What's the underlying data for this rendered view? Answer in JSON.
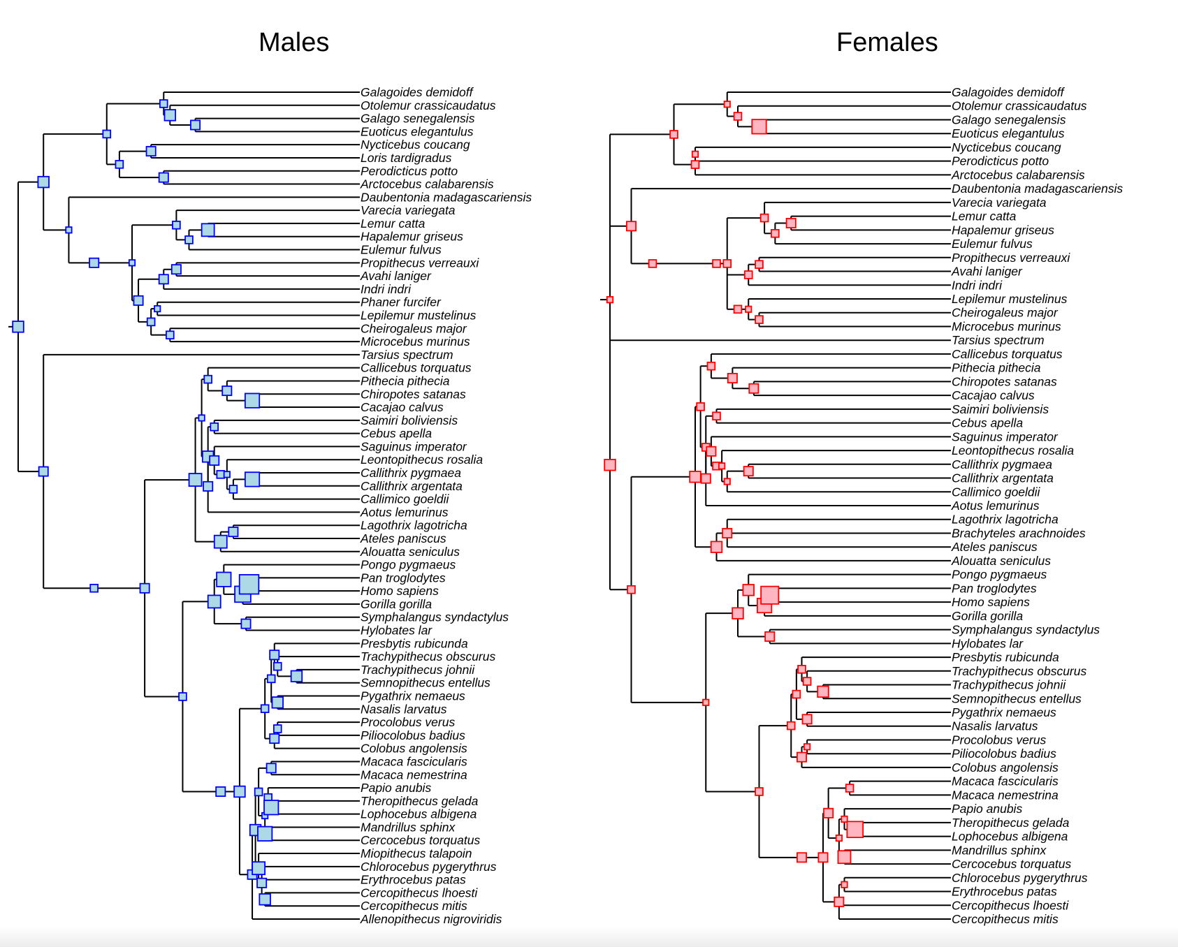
{
  "colors": {
    "males_fill": "#add8e6",
    "males_stroke": "#0000ff",
    "females_fill": "#ffb6c1",
    "females_stroke": "#ff0000",
    "branch": "#000000"
  },
  "panels": [
    {
      "id": "males",
      "title": "Males",
      "tips": [
        "Galagoides demidoff",
        "Otolemur crassicaudatus",
        "Galago senegalensis",
        "Euoticus elegantulus",
        "Nycticebus coucang",
        "Loris tardigradus",
        "Perodicticus potto",
        "Arctocebus calabarensis",
        "Daubentonia madagascariensis",
        "Varecia variegata",
        "Lemur catta",
        "Hapalemur griseus",
        "Eulemur fulvus",
        "Propithecus verreauxi",
        "Avahi laniger",
        "Indri indri",
        "Phaner furcifer",
        "Lepilemur mustelinus",
        "Cheirogaleus major",
        "Microcebus murinus",
        "Tarsius spectrum",
        "Callicebus torquatus",
        "Pithecia pithecia",
        "Chiropotes satanas",
        "Cacajao calvus",
        "Saimiri boliviensis",
        "Cebus apella",
        "Saguinus imperator",
        "Leontopithecus rosalia",
        "Callithrix pygmaea",
        "Callithrix argentata",
        "Callimico goeldii",
        "Aotus lemurinus",
        "Lagothrix lagotricha",
        "Ateles paniscus",
        "Alouatta seniculus",
        "Pongo pygmaeus",
        "Pan troglodytes",
        "Homo sapiens",
        "Gorilla gorilla",
        "Symphalangus syndactylus",
        "Hylobates lar",
        "Presbytis rubicunda",
        "Trachypithecus obscurus",
        "Trachypithecus johnii",
        "Semnopithecus entellus",
        "Pygathrix nemaeus",
        "Nasalis larvatus",
        "Procolobus verus",
        "Piliocolobus badius",
        "Colobus angolensis",
        "Macaca fascicularis",
        "Macaca nemestrina",
        "Papio anubis",
        "Theropithecus gelada",
        "Lophocebus albigena",
        "Mandrillus sphinx",
        "Cercocebus torquatus",
        "Miopithecus talapoin",
        "Chlorocebus pygerythrus",
        "Erythrocebus patas",
        "Cercopithecus lhoesti",
        "Cercopithecus mitis",
        "Allenopithecus nigroviridis"
      ],
      "tree": "((((Galagoides demidoff:4,(Otolemur crassicaudatus:3.5,(Galago senegalensis:1.5,Euoticus elegantulus:1.5)s3:2)s4:0.5)s2:4.5,((Nycticebus coucang:5,Loris tardigradus:5)s3:2.5,(Perodicticus potto:4,Arctocebus calabarensis:4)s3:3.5)s2:1)s2:5,(Daubentonia madagascariensis:11,(((Varecia variegata:4.5,((Lemur catta:2,Hapalemur griseus:2)s5:1.5,Eulemur fulvus:3.5)s2:1)s2:3.5,(((Propithecus verreauxi:3.5,Avahi laniger:3.5)s3:1,Indri indri:4.5)s3:2,((Phaner furcifer:5,Lepilemur mustelinus:5)s1:0.5,(Cheirogaleus major:4,Microcebus murinus:4)s2:1.5)s2:1)s3:0.5)s1:3)s3:2)s1:2)s4:2,(Tarsius spectrum:14,(((((Callicebus torquatus:4,(Pithecia pithecia:2.5,(Chiropotes satanas:0.5,Cacajao calvus:0.5)s6:2)s3:1.5)s2:0.5,((Saimiri boliviensis:3.5,Cebus apella:3.5)s2:0.5,((Saguinus imperator:3.5,((Leontopithecus rosalia:3,((Callithrix pygmaea:1,Callithrix argentata:1)s6:1.5,Callimico goeldii:2.5)s2:0.5)s1:0.5)s2:0.5)s3:0.5,Aotus lemurinus:4.5)s3:0)s4:0.5)s1:0.5,((Lagothrix lagotricha:1.5,Ateles paniscus:1.5)s3:1,Alouatta seniculus:3)s5:2)s5:4,(((Pongo pygmaeus:3,((Pan troglodytes:1,Homo sapiens:1)s9:0.5,Gorilla gorilla:1.5)s7:1.5)s6:0.75,(Symphalangus syndactylus:1.25,Hylobates lar:1.25)s3:2.5)s5:2.5,(((((Presbytis rubicunda:2.25,(Trachypithecus obscurus:2,(Trachypithecus johnii:0.5,Semnopithecus entellus:0.5)s4:1.5)s2:0.25)s3:0.25,(Pygathrix nemaeus:2,Nasalis larvatus:2)s4:0.5)s2:0.5,((Procolobus verus:2,Piliocolobus badius:2)s2:0.25,Colobus angolensis:2.25)s3:0.75)s2:2,((((Macaca fascicularis:1.25,Macaca nemestrina:1.25)s3:1,((Papio anubis:0.75,(Theropithecus gelada:0.5,Lophocebus albigena:0.5)s6:0.25)s2:0.25,(Mandrillus sphinx:1,Cercocebus torquatus:1)s6:0)s1:0.5)s2:0.25,(Miopithecus talapoin:1.5,(Chlorocebus pygerythrus:1.5,Erythrocebus patas:1.5,(Cercopithecus lhoesti:0.5,Cercopithecus mitis:0.5)s4:0.25)s3:0.25)s5:0.25)s4:0.25,Allenopithecus nigroviridis:2.75)s3:1)s4:1.5)s3:3)s2:3)s3:4)s2:4)s3:2)s4"
    },
    {
      "id": "females",
      "title": "Females",
      "tips": [
        "Galagoides demidoff",
        "Otolemur crassicaudatus",
        "Galago senegalensis",
        "Euoticus elegantulus",
        "Nycticebus coucang",
        "Perodicticus potto",
        "Arctocebus calabarensis",
        "Daubentonia madagascariensis",
        "Varecia variegata",
        "Lemur catta",
        "Hapalemur griseus",
        "Eulemur fulvus",
        "Propithecus verreauxi",
        "Avahi laniger",
        "Indri indri",
        "Lepilemur mustelinus",
        "Cheirogaleus major",
        "Microcebus murinus",
        "Tarsius spectrum",
        "Callicebus torquatus",
        "Pithecia pithecia",
        "Chiropotes satanas",
        "Cacajao calvus",
        "Saimiri boliviensis",
        "Cebus apella",
        "Saguinus imperator",
        "Leontopithecus rosalia",
        "Callithrix pygmaea",
        "Callithrix argentata",
        "Callimico goeldii",
        "Aotus lemurinus",
        "Lagothrix lagotricha",
        "Brachyteles arachnoides",
        "Ateles paniscus",
        "Alouatta seniculus",
        "Pongo pygmaeus",
        "Pan troglodytes",
        "Homo sapiens",
        "Gorilla gorilla",
        "Symphalangus syndactylus",
        "Hylobates lar",
        "Presbytis rubicunda",
        "Trachypithecus obscurus",
        "Trachypithecus johnii",
        "Semnopithecus entellus",
        "Pygathrix nemaeus",
        "Nasalis larvatus",
        "Procolobus verus",
        "Piliocolobus badius",
        "Colobus angolensis",
        "Macaca fascicularis",
        "Macaca nemestrina",
        "Papio anubis",
        "Theropithecus gelada",
        "Lophocebus albigena",
        "Mandrillus sphinx",
        "Cercocebus torquatus",
        "Chlorocebus pygerythrus",
        "Erythrocebus patas",
        "Cercopithecus lhoesti",
        "Cercopithecus mitis"
      ],
      "tree": "((((Galagoides demidoff:5,(Otolemur crassicaudatus:4,(Galago senegalensis:2,Euoticus elegantulus:2)s6:2)s2:1)s1:5,((Nycticebus coucang:8,Perodicticus potto:8)s1:0,Arctocebus calabarensis:5)s2:2)s2:6,(Daubentonia madagascariensis:13,((((Varecia variegata:5,((Lemur catta:3,Hapalemur griseus:3)s3:1.5,Eulemur fulvus:4.5)s2:1)s2:3.5,((Propithecus verreauxi:4,Avahi laniger:4)s2:1,Indri indri:5)s2:2,((Lepilemur mustelinus:5,(Cheirogaleus major:4,Microcebus murinus:4)s2:1)s1:1)s2:1)s2:1)s2:6)s2:2)s3:2,(Tarsius spectrum:16,((((Callicebus torquatus:5,(Pithecia pithecia:3,(Chiropotes satanas:1,Cacajao calvus:1)s3:2)s3:2)s2:1,((Saimiri boliviensis:4.5,Cebus apella:4.5)s2:1,((Saguinus imperator:4,((Leontopithecus rosalia:3,((Callithrix pygmaea:1.5,Callithrix argentata:1.5)s3:2,Callimico goeldii:3.5)s1:0.5)s1:0.5)s2:0.5)s3:0.5,Aotus lemurinus:5)s3:0)s2:0.5)s2:0.5,((Lagothrix lagotricha:2.5,Brachyteles arachnoides:2.5,Ateles paniscus:2.5)s3:1,Alouatta seniculus:3.5)s4:2)s4:6,(((Pongo pygmaeus:4,((Pan troglodytes:2,Homo sapiens:2)s8:0.5,Gorilla gorilla:2.5)s6:1.5)s4:1,(Symphalangus syndactylus:2.5,Hylobates lar:2.5)s3:3)s4:3,((((Presbytis rubicunda:3,(Trachypithecus obscurus:2.5,(Trachypithecus johnii:1,Semnopithecus entellus:1)s4:1.5)s2:0.5)s2:0.5,(Pygathrix nemaeus:2.5,Nasalis larvatus:2.5)s3:1)s2:0.5,((Procolobus verus:2.5,Piliocolobus badius:2.5)s1:0.5,Colobus angolensis:3)s3:1)s2:3,((((Macaca fascicularis:2,Macaca nemestrina:2)s2:2,((Papio anubis:1.5,(Theropithecus gelada:0.5,Lophocebus albigena:0.5)s7:1)s1:0.5,(Mandrillus sphinx:1.5,Cercocebus torquatus:1.5)s5:0.5)s1:1)s3:0.5,((Chlorocebus pygerythrus:2,Erythrocebus patas:2)s1:0.5,Cercopithecus lhoesti:2.5,Cercopithecus mitis:2.5)s3:1.5)s3:2)s3:4)s2:5)s1:7)s2:2)s4"
    }
  ]
}
